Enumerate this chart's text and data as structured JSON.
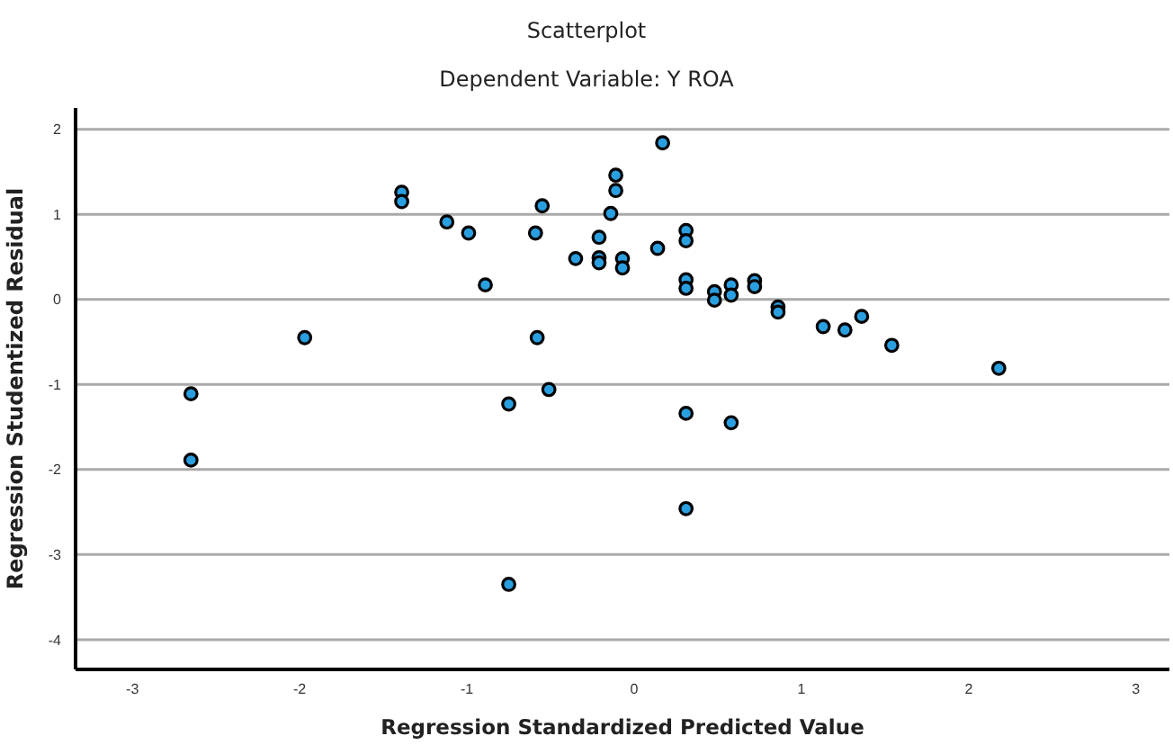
{
  "chart_data": {
    "type": "scatter",
    "title": "Scatterplot",
    "subtitle": "Dependent Variable: Y ROA",
    "xlabel": "Regression Standardized Predicted Value",
    "ylabel": "Regression Studentized Residual",
    "xlim": [
      -3.34,
      3.2
    ],
    "xticks": [
      -3,
      -2,
      -1,
      0,
      1,
      2,
      3
    ],
    "ylim": [
      -4.35,
      2.25
    ],
    "yticks": [
      -4,
      -3,
      -2,
      -1,
      0,
      1,
      2
    ],
    "grid": "y",
    "marker": "circle",
    "series": [
      {
        "color": "#2a9fe0",
        "x": [
          -1.39,
          -1.39,
          -1.12,
          -0.99,
          -0.59,
          -0.55,
          -0.35,
          -0.21,
          -0.21,
          -0.21,
          -0.89,
          -1.97,
          -0.58,
          0.17,
          -0.11,
          -0.11,
          -0.14,
          -0.07,
          -0.07,
          0.14,
          0.31,
          0.31,
          0.31,
          0.31,
          0.48,
          0.48,
          0.58,
          0.58,
          0.72,
          0.72,
          0.86,
          0.86,
          1.13,
          1.26,
          1.36,
          1.54,
          2.18,
          -2.65,
          -2.65,
          -0.75,
          -0.51,
          -0.75,
          0.31,
          0.58,
          0.31
        ],
        "values": [
          1.26,
          1.15,
          0.91,
          0.78,
          0.78,
          1.1,
          0.48,
          0.73,
          0.49,
          0.43,
          0.17,
          -0.45,
          -0.45,
          1.84,
          1.46,
          1.28,
          1.01,
          0.48,
          0.37,
          0.6,
          0.81,
          0.69,
          0.23,
          0.13,
          0.09,
          -0.01,
          0.17,
          0.05,
          0.22,
          0.15,
          -0.09,
          -0.15,
          -0.32,
          -0.36,
          -0.2,
          -0.54,
          -0.81,
          -1.11,
          -1.89,
          -1.23,
          -1.06,
          -3.35,
          -1.34,
          -1.45,
          -2.46
        ]
      }
    ]
  }
}
